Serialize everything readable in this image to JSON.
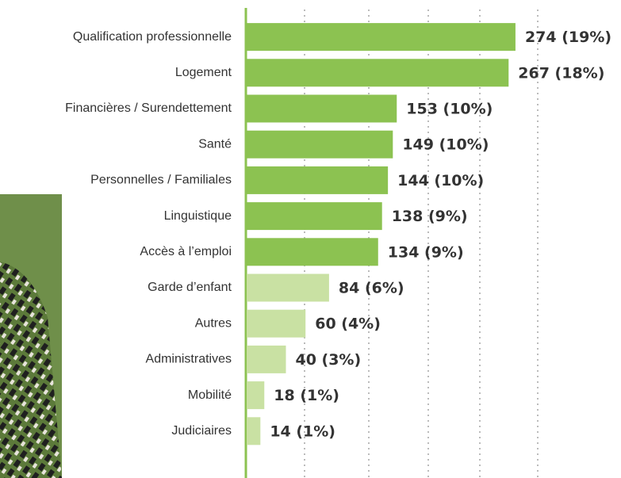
{
  "chart_data": {
    "type": "hbar",
    "categories": [
      "Qualification professionnelle",
      "Logement",
      "Financières / Surendettement",
      "Santé",
      "Personnelles / Familiales",
      "Linguistique",
      "Accès à l’emploi",
      "Garde d’enfant",
      "Autres",
      "Administratives",
      "Mobilité",
      "Judiciaires"
    ],
    "values": [
      274,
      267,
      153,
      149,
      144,
      138,
      134,
      84,
      60,
      40,
      18,
      14
    ],
    "value_labels": [
      "274 (19%)",
      "267 (18%)",
      "153 (10%)",
      "149 (10%)",
      "144 (10%)",
      "138 (9%)",
      "134 (9%)",
      "84 (6%)",
      "60 (4%)",
      "40 (3%)",
      "18 (1%)",
      "14 (1%)"
    ],
    "colors": [
      "#8cc251",
      "#8cc251",
      "#8cc251",
      "#8cc251",
      "#8cc251",
      "#8cc251",
      "#8cc251",
      "#c9e1a3",
      "#c9e1a3",
      "#c9e1a3",
      "#c9e1a3",
      "#c9e1a3"
    ],
    "xlim": [
      0,
      360
    ]
  }
}
